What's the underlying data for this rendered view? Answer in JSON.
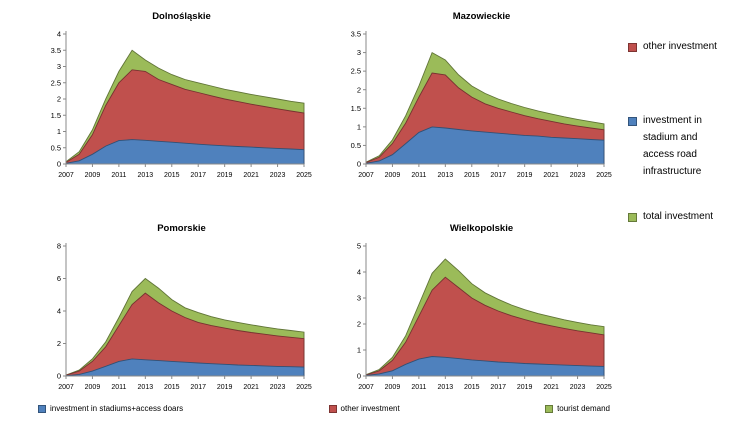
{
  "colors": {
    "blue": "#4F81BD",
    "red": "#C0504D",
    "green": "#9BBB59",
    "axis": "#898989"
  },
  "right_legend": {
    "items": [
      {
        "label": "other investment",
        "color": "#C0504D"
      },
      {
        "label": "investment in stadium and access road infrastructure",
        "color": "#4F81BD"
      },
      {
        "label": "total investment",
        "color": "#9BBB59"
      }
    ]
  },
  "bottom_legend": {
    "items": [
      {
        "label": "investment in stadiums+access doars",
        "color": "#4F81BD"
      },
      {
        "label": "other investment",
        "color": "#C0504D"
      },
      {
        "label": "tourist demand",
        "color": "#9BBB59"
      }
    ]
  },
  "chart_data": [
    {
      "type": "area",
      "stacked": true,
      "title": "Dolnośląskie",
      "x": [
        2007,
        2008,
        2009,
        2010,
        2011,
        2012,
        2013,
        2014,
        2015,
        2016,
        2017,
        2018,
        2019,
        2020,
        2021,
        2022,
        2023,
        2024,
        2025
      ],
      "x_tick_labels": [
        "2007",
        "2009",
        "2011",
        "2013",
        "2015",
        "2017",
        "2019",
        "2021",
        "2023",
        "2025"
      ],
      "ylim": [
        0,
        4
      ],
      "ytick_step": 0.5,
      "grid": false,
      "series": [
        {
          "name": "investment in stadiums+access roads",
          "color": "#4F81BD",
          "cumulative_top": [
            0.02,
            0.1,
            0.3,
            0.55,
            0.72,
            0.75,
            0.73,
            0.7,
            0.67,
            0.64,
            0.61,
            0.58,
            0.56,
            0.54,
            0.52,
            0.5,
            0.48,
            0.46,
            0.44
          ]
        },
        {
          "name": "other investment",
          "color": "#C0504D",
          "cumulative_top": [
            0.05,
            0.3,
            0.9,
            1.8,
            2.5,
            2.9,
            2.85,
            2.6,
            2.45,
            2.3,
            2.2,
            2.1,
            2.0,
            1.92,
            1.84,
            1.77,
            1.7,
            1.63,
            1.57
          ]
        },
        {
          "name": "tourist demand (total investment)",
          "color": "#9BBB59",
          "cumulative_top": [
            0.07,
            0.38,
            1.05,
            2.0,
            2.85,
            3.5,
            3.2,
            2.95,
            2.75,
            2.6,
            2.5,
            2.4,
            2.3,
            2.22,
            2.14,
            2.07,
            2.0,
            1.93,
            1.87
          ]
        }
      ]
    },
    {
      "type": "area",
      "stacked": true,
      "title": "Mazowieckie",
      "x": [
        2007,
        2008,
        2009,
        2010,
        2011,
        2012,
        2013,
        2014,
        2015,
        2016,
        2017,
        2018,
        2019,
        2020,
        2021,
        2022,
        2023,
        2024,
        2025
      ],
      "x_tick_labels": [
        "2007",
        "2009",
        "2011",
        "2013",
        "2015",
        "2017",
        "2019",
        "2021",
        "2023",
        "2025"
      ],
      "ylim": [
        0,
        3.5
      ],
      "ytick_step": 0.5,
      "grid": false,
      "series": [
        {
          "name": "investment in stadiums+access roads",
          "color": "#4F81BD",
          "cumulative_top": [
            0.02,
            0.08,
            0.25,
            0.55,
            0.85,
            1.0,
            0.97,
            0.93,
            0.89,
            0.86,
            0.83,
            0.8,
            0.77,
            0.75,
            0.72,
            0.7,
            0.68,
            0.66,
            0.64
          ]
        },
        {
          "name": "other investment",
          "color": "#C0504D",
          "cumulative_top": [
            0.04,
            0.18,
            0.55,
            1.1,
            1.8,
            2.45,
            2.4,
            2.05,
            1.8,
            1.62,
            1.5,
            1.4,
            1.3,
            1.22,
            1.15,
            1.08,
            1.02,
            0.97,
            0.92
          ]
        },
        {
          "name": "tourist demand (total investment)",
          "color": "#9BBB59",
          "cumulative_top": [
            0.05,
            0.22,
            0.65,
            1.3,
            2.1,
            3.0,
            2.8,
            2.4,
            2.1,
            1.9,
            1.75,
            1.63,
            1.52,
            1.43,
            1.35,
            1.27,
            1.2,
            1.14,
            1.08
          ]
        }
      ]
    },
    {
      "type": "area",
      "stacked": true,
      "title": "Pomorskie",
      "x": [
        2007,
        2008,
        2009,
        2010,
        2011,
        2012,
        2013,
        2014,
        2015,
        2016,
        2017,
        2018,
        2019,
        2020,
        2021,
        2022,
        2023,
        2024,
        2025
      ],
      "x_tick_labels": [
        "2007",
        "2009",
        "2011",
        "2013",
        "2015",
        "2017",
        "2019",
        "2021",
        "2023",
        "2025"
      ],
      "ylim": [
        0,
        8
      ],
      "ytick_step": 2,
      "grid": false,
      "series": [
        {
          "name": "investment in stadiums+access roads",
          "color": "#4F81BD",
          "cumulative_top": [
            0.02,
            0.1,
            0.3,
            0.6,
            0.9,
            1.05,
            1.0,
            0.95,
            0.9,
            0.85,
            0.8,
            0.76,
            0.72,
            0.68,
            0.65,
            0.62,
            0.59,
            0.57,
            0.55
          ]
        },
        {
          "name": "other investment",
          "color": "#C0504D",
          "cumulative_top": [
            0.05,
            0.3,
            0.9,
            1.8,
            3.1,
            4.4,
            5.1,
            4.5,
            4.0,
            3.6,
            3.3,
            3.1,
            2.95,
            2.8,
            2.68,
            2.57,
            2.47,
            2.38,
            2.3
          ]
        },
        {
          "name": "tourist demand (total investment)",
          "color": "#9BBB59",
          "cumulative_top": [
            0.06,
            0.36,
            1.05,
            2.1,
            3.6,
            5.2,
            6.0,
            5.4,
            4.7,
            4.2,
            3.9,
            3.65,
            3.45,
            3.3,
            3.15,
            3.02,
            2.9,
            2.8,
            2.7
          ]
        }
      ]
    },
    {
      "type": "area",
      "stacked": true,
      "title": "Wielkopolskie",
      "x": [
        2007,
        2008,
        2009,
        2010,
        2011,
        2012,
        2013,
        2014,
        2015,
        2016,
        2017,
        2018,
        2019,
        2020,
        2021,
        2022,
        2023,
        2024,
        2025
      ],
      "x_tick_labels": [
        "2007",
        "2009",
        "2011",
        "2013",
        "2015",
        "2017",
        "2019",
        "2021",
        "2023",
        "2025"
      ],
      "ylim": [
        0,
        5
      ],
      "ytick_step": 1,
      "grid": false,
      "series": [
        {
          "name": "investment in stadiums+access roads",
          "color": "#4F81BD",
          "cumulative_top": [
            0.02,
            0.08,
            0.2,
            0.45,
            0.65,
            0.75,
            0.72,
            0.67,
            0.62,
            0.58,
            0.54,
            0.51,
            0.48,
            0.46,
            0.44,
            0.42,
            0.4,
            0.38,
            0.37
          ]
        },
        {
          "name": "other investment",
          "color": "#C0504D",
          "cumulative_top": [
            0.04,
            0.2,
            0.6,
            1.3,
            2.3,
            3.3,
            3.8,
            3.4,
            3.0,
            2.72,
            2.5,
            2.32,
            2.17,
            2.04,
            1.93,
            1.83,
            1.74,
            1.66,
            1.58
          ]
        },
        {
          "name": "tourist demand (total investment)",
          "color": "#9BBB59",
          "cumulative_top": [
            0.05,
            0.25,
            0.72,
            1.55,
            2.75,
            3.95,
            4.5,
            4.05,
            3.55,
            3.2,
            2.95,
            2.73,
            2.55,
            2.4,
            2.28,
            2.16,
            2.06,
            1.97,
            1.9
          ]
        }
      ]
    }
  ]
}
